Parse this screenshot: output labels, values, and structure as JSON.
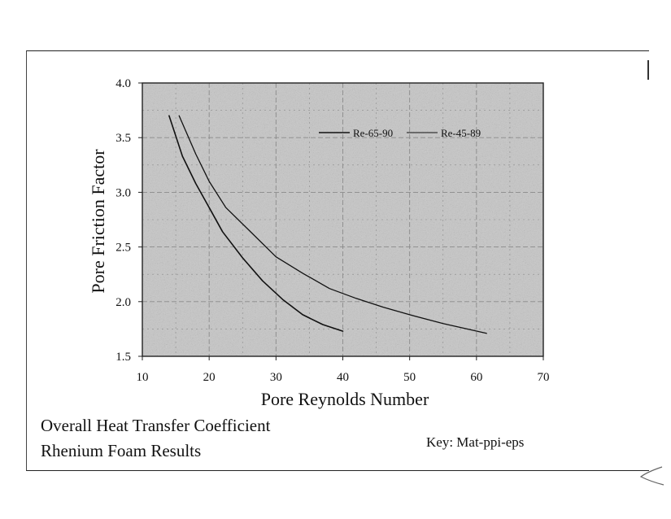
{
  "chart_data": {
    "type": "line",
    "title": "",
    "xlabel": "Pore Reynolds Number",
    "ylabel": "Pore Friction Factor",
    "xlim": [
      10,
      70
    ],
    "ylim": [
      1.5,
      4.0
    ],
    "x_ticks": [
      10,
      20,
      30,
      40,
      50,
      60,
      70
    ],
    "y_ticks": [
      1.5,
      2.0,
      2.5,
      3.0,
      3.5,
      4.0
    ],
    "x_tick_labels": [
      "10",
      "20",
      "30",
      "40",
      "50",
      "60",
      "70"
    ],
    "y_tick_labels": [
      "1.5",
      "2.0",
      "2.5",
      "3.0",
      "3.5",
      "4.0"
    ],
    "grid": true,
    "legend_position": "top-right",
    "series": [
      {
        "name": "Re-65-90",
        "x": [
          14.0,
          16.0,
          18.0,
          20.0,
          22.0,
          25.0,
          28.0,
          31.0,
          34.0,
          37.0,
          40.0
        ],
        "y": [
          3.7,
          3.33,
          3.08,
          2.86,
          2.64,
          2.4,
          2.19,
          2.02,
          1.88,
          1.79,
          1.73
        ]
      },
      {
        "name": "Re-45-89",
        "x": [
          15.5,
          18.0,
          20.0,
          22.5,
          26.0,
          30.0,
          34.0,
          38.0,
          42.0,
          46.0,
          50.0,
          55.0,
          61.5
        ],
        "y": [
          3.7,
          3.35,
          3.1,
          2.86,
          2.65,
          2.41,
          2.26,
          2.12,
          2.03,
          1.95,
          1.88,
          1.8,
          1.71
        ]
      }
    ]
  },
  "caption": {
    "line1": "Overall Heat Transfer Coefficient",
    "line2": "Rhenium Foam Results",
    "key": "Key:  Mat-ppi-eps"
  },
  "colors": {
    "plot_background": "#c6c6c6",
    "line": "#111111",
    "grid": "#8a8a8a"
  }
}
